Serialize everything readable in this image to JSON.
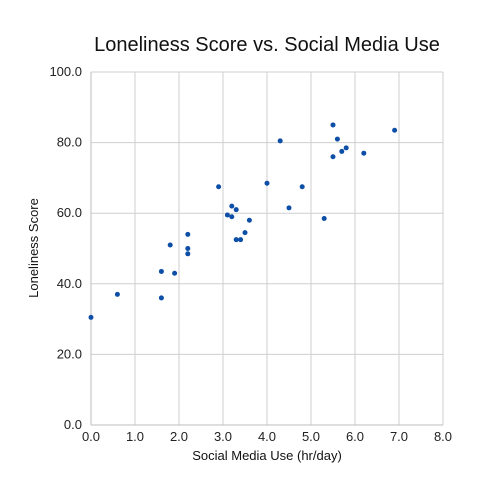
{
  "chart_data": {
    "type": "scatter",
    "title": "Loneliness Score vs. Social Media Use",
    "xlabel": "Social Media Use (hr/day)",
    "ylabel": "Loneliness Score",
    "xlim": [
      0,
      8
    ],
    "ylim": [
      0,
      100
    ],
    "x_ticks": [
      "0.0",
      "1.0",
      "2.0",
      "3.0",
      "4.0",
      "5.0",
      "6.0",
      "7.0",
      "8.0"
    ],
    "y_ticks": [
      "0.0",
      "20.0",
      "40.0",
      "60.0",
      "80.0",
      "100.0"
    ],
    "grid": true,
    "series": [
      {
        "color": "#0d4ea6",
        "points": [
          {
            "x": 0.0,
            "y": 30.5
          },
          {
            "x": 0.6,
            "y": 37.0
          },
          {
            "x": 1.6,
            "y": 36.0
          },
          {
            "x": 1.6,
            "y": 43.5
          },
          {
            "x": 1.8,
            "y": 51.0
          },
          {
            "x": 1.9,
            "y": 43.0
          },
          {
            "x": 2.2,
            "y": 54.0
          },
          {
            "x": 2.2,
            "y": 50.0
          },
          {
            "x": 2.2,
            "y": 48.5
          },
          {
            "x": 2.9,
            "y": 67.5
          },
          {
            "x": 3.1,
            "y": 59.5
          },
          {
            "x": 3.2,
            "y": 62.0
          },
          {
            "x": 3.2,
            "y": 59.0
          },
          {
            "x": 3.3,
            "y": 61.0
          },
          {
            "x": 3.3,
            "y": 52.5
          },
          {
            "x": 3.4,
            "y": 52.5
          },
          {
            "x": 3.5,
            "y": 54.5
          },
          {
            "x": 3.6,
            "y": 58.0
          },
          {
            "x": 4.0,
            "y": 68.5
          },
          {
            "x": 4.3,
            "y": 80.5
          },
          {
            "x": 4.5,
            "y": 61.5
          },
          {
            "x": 4.8,
            "y": 67.5
          },
          {
            "x": 5.3,
            "y": 58.5
          },
          {
            "x": 5.5,
            "y": 85.0
          },
          {
            "x": 5.5,
            "y": 76.0
          },
          {
            "x": 5.6,
            "y": 81.0
          },
          {
            "x": 5.7,
            "y": 77.5
          },
          {
            "x": 5.8,
            "y": 78.5
          },
          {
            "x": 6.2,
            "y": 77.0
          },
          {
            "x": 6.9,
            "y": 83.5
          }
        ]
      }
    ]
  }
}
